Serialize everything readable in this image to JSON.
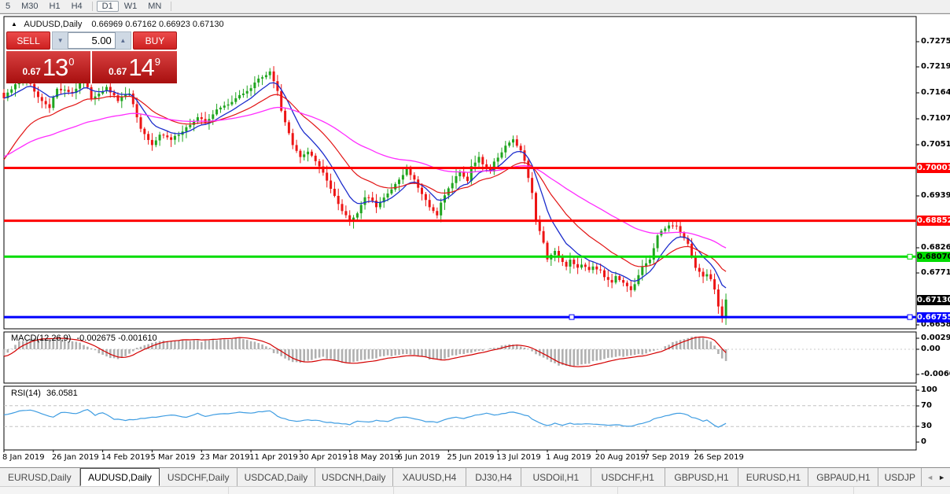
{
  "toolbar": {
    "timeframes": [
      {
        "label": "5",
        "active": false
      },
      {
        "label": "M30",
        "active": false
      },
      {
        "label": "H1",
        "active": false
      },
      {
        "label": "H4",
        "active": false
      },
      {
        "label": "D1",
        "active": true
      },
      {
        "label": "W1",
        "active": false
      },
      {
        "label": "MN",
        "active": false
      }
    ]
  },
  "chart": {
    "symbol_header": "AUDUSD,Daily",
    "ohlc_text": "0.66969 0.67162 0.66923 0.67130"
  },
  "trade_panel": {
    "sell_label": "SELL",
    "buy_label": "BUY",
    "volume": "5.00",
    "sell_price": {
      "small": "0.67",
      "big": "13",
      "sup": "0"
    },
    "buy_price": {
      "small": "0.67",
      "big": "14",
      "sup": "9"
    }
  },
  "price_scale": {
    "ticks": [
      "0.72750",
      "0.72195",
      "0.71640",
      "0.71070",
      "0.70515",
      "0.69390",
      "0.68265",
      "0.67710",
      "0.66585"
    ]
  },
  "indicators": {
    "macd": {
      "label": "MACD(12,26,9)",
      "values": "-0.002675 -0.001610",
      "scale_labels": [
        "0.002968",
        "0.00",
        "-0.006047"
      ]
    },
    "rsi": {
      "label": "RSI(14)",
      "value": "36.0581",
      "scale_labels": [
        "100",
        "70",
        "30",
        "0"
      ],
      "levels": [
        70,
        30
      ]
    }
  },
  "x_axis": {
    "dates": [
      "8 Jan 2019",
      "26 Jan 2019",
      "14 Feb 2019",
      "5 Mar 2019",
      "23 Mar 2019",
      "11 Apr 2019",
      "30 Apr 2019",
      "18 May 2019",
      "6 Jun 2019",
      "25 Jun 2019",
      "13 Jul 2019",
      "1 Aug 2019",
      "20 Aug 2019",
      "7 Sep 2019",
      "26 Sep 2019"
    ]
  },
  "tab_bar": {
    "tabs": [
      "EURUSD,Daily",
      "AUDUSD,Daily",
      "USDCHF,Daily",
      "USDCAD,Daily",
      "USDCNH,Daily",
      "XAUUSD,H4",
      "DJ30,H4",
      "USDOil,H1",
      "USDCHF,H1",
      "GBPUSD,H1",
      "EURUSD,H1",
      "GBPAUD,H1",
      "USDJP"
    ],
    "active_tab": "AUDUSD,Daily",
    "scroll_left": "◄",
    "scroll_right": "►"
  },
  "chart_data": {
    "type": "candlestick",
    "symbol": "AUDUSD",
    "period": "Daily",
    "num_candles": 191,
    "ylim": [
      0.66585,
      0.7275
    ],
    "colors": {
      "up_candle": "#1fa51f",
      "down_candle": "#ed1515",
      "ma_fast_blue": "#1c2ccc",
      "ma_mid_red": "#e21414",
      "ma_slow_magenta": "#ff2cff",
      "macd_hist": "#b0b0b0",
      "macd_signal": "#d40000",
      "rsi_line": "#3f9de2",
      "level_red": "#fe0000",
      "level_green": "#00dc00",
      "level_blue": "#0000fe"
    },
    "close_anchors": [
      [
        0,
        0.7152
      ],
      [
        3,
        0.7181
      ],
      [
        6,
        0.7195
      ],
      [
        9,
        0.7152
      ],
      [
        12,
        0.713
      ],
      [
        14,
        0.7174
      ],
      [
        18,
        0.7164
      ],
      [
        21,
        0.7195
      ],
      [
        23,
        0.7152
      ],
      [
        27,
        0.7174
      ],
      [
        30,
        0.7147
      ],
      [
        33,
        0.7164
      ],
      [
        36,
        0.7083
      ],
      [
        39,
        0.7049
      ],
      [
        41,
        0.7075
      ],
      [
        44,
        0.7061
      ],
      [
        48,
        0.7088
      ],
      [
        51,
        0.7109
      ],
      [
        53,
        0.71
      ],
      [
        56,
        0.7126
      ],
      [
        59,
        0.714
      ],
      [
        62,
        0.7157
      ],
      [
        65,
        0.7174
      ],
      [
        67,
        0.7195
      ],
      [
        70,
        0.7208
      ],
      [
        72,
        0.7169
      ],
      [
        73,
        0.7126
      ],
      [
        76,
        0.7049
      ],
      [
        78,
        0.7023
      ],
      [
        80,
        0.7037
      ],
      [
        82,
        0.7015
      ],
      [
        84,
        0.6989
      ],
      [
        87,
        0.6941
      ],
      [
        89,
        0.6907
      ],
      [
        91,
        0.6886
      ],
      [
        93,
        0.6903
      ],
      [
        95,
        0.6938
      ],
      [
        97,
        0.6929
      ],
      [
        98,
        0.6917
      ],
      [
        100,
        0.6934
      ],
      [
        102,
        0.6955
      ],
      [
        105,
        0.6986
      ],
      [
        106,
        0.6998
      ],
      [
        108,
        0.6973
      ],
      [
        110,
        0.6941
      ],
      [
        112,
        0.6917
      ],
      [
        114,
        0.6895
      ],
      [
        115,
        0.6924
      ],
      [
        117,
        0.6955
      ],
      [
        119,
        0.698
      ],
      [
        120,
        0.6992
      ],
      [
        122,
        0.6973
      ],
      [
        123,
        0.7003
      ],
      [
        125,
        0.7024
      ],
      [
        126,
        0.701
      ],
      [
        128,
        0.6992
      ],
      [
        129,
        0.7015
      ],
      [
        131,
        0.7032
      ],
      [
        132,
        0.7049
      ],
      [
        134,
        0.7061
      ],
      [
        136,
        0.704
      ],
      [
        137,
        0.7015
      ],
      [
        139,
        0.6946
      ],
      [
        140,
        0.6886
      ],
      [
        142,
        0.6835
      ],
      [
        143,
        0.6801
      ],
      [
        145,
        0.6821
      ],
      [
        146,
        0.6804
      ],
      [
        148,
        0.6787
      ],
      [
        149,
        0.6801
      ],
      [
        151,
        0.6784
      ],
      [
        152,
        0.6792
      ],
      [
        154,
        0.678
      ],
      [
        155,
        0.6787
      ],
      [
        157,
        0.6775
      ],
      [
        158,
        0.6763
      ],
      [
        160,
        0.6753
      ],
      [
        161,
        0.6766
      ],
      [
        163,
        0.6749
      ],
      [
        165,
        0.6732
      ],
      [
        166,
        0.6746
      ],
      [
        167,
        0.6766
      ],
      [
        168,
        0.6784
      ],
      [
        170,
        0.6801
      ],
      [
        171,
        0.6826
      ],
      [
        172,
        0.6852
      ],
      [
        174,
        0.6869
      ],
      [
        175,
        0.6877
      ],
      [
        177,
        0.6872
      ],
      [
        178,
        0.686
      ],
      [
        180,
        0.6835
      ],
      [
        181,
        0.6809
      ],
      [
        182,
        0.6784
      ],
      [
        183,
        0.6775
      ],
      [
        184,
        0.6763
      ],
      [
        185,
        0.677
      ],
      [
        186,
        0.6758
      ],
      [
        187,
        0.6735
      ],
      [
        188,
        0.6697
      ],
      [
        189,
        0.6671
      ],
      [
        190,
        0.6713
      ]
    ],
    "hlines": [
      {
        "price": 0.70001,
        "label": "0.70001",
        "color": "#fe0000",
        "label_fg": "#ffffff",
        "handles": []
      },
      {
        "price": 0.68852,
        "label": "0.68852",
        "color": "#fe0000",
        "label_fg": "#ffffff",
        "handles": []
      },
      {
        "price": 0.6807,
        "label": "0.68070",
        "color": "#00dc00",
        "label_fg": "#000000",
        "handles": [
          1157
        ]
      },
      {
        "price": 0.66755,
        "label": "0.66755",
        "color": "#0000fe",
        "label_fg": "#ffffff",
        "handles": [
          727,
          1157
        ]
      }
    ],
    "current_price_label": {
      "price": 0.6713,
      "label": "0.67130",
      "bg": "#000000",
      "fg": "#ffffff"
    },
    "macd_hist_anchors": [
      [
        0,
        -8
      ],
      [
        4,
        10
      ],
      [
        8,
        14
      ],
      [
        13,
        13
      ],
      [
        19,
        10
      ],
      [
        22,
        3
      ],
      [
        24,
        -2
      ],
      [
        27,
        -10
      ],
      [
        30,
        -12
      ],
      [
        33,
        -6
      ],
      [
        35,
        2
      ],
      [
        37,
        6
      ],
      [
        41,
        10
      ],
      [
        47,
        12
      ],
      [
        52,
        10
      ],
      [
        56,
        12
      ],
      [
        61,
        14
      ],
      [
        64,
        12
      ],
      [
        67,
        8
      ],
      [
        70,
        2
      ],
      [
        71,
        -4
      ],
      [
        75,
        -14
      ],
      [
        78,
        -18
      ],
      [
        80,
        -14
      ],
      [
        84,
        -10
      ],
      [
        87,
        -14
      ],
      [
        90,
        -18
      ],
      [
        93,
        -16
      ],
      [
        96,
        -12
      ],
      [
        99,
        -10
      ],
      [
        102,
        -8
      ],
      [
        106,
        -6
      ],
      [
        109,
        -8
      ],
      [
        112,
        -12
      ],
      [
        115,
        -14
      ],
      [
        117,
        -10
      ],
      [
        120,
        -6
      ],
      [
        123,
        -4
      ],
      [
        126,
        -2
      ],
      [
        129,
        2
      ],
      [
        131,
        4
      ],
      [
        134,
        6
      ],
      [
        136,
        4
      ],
      [
        138,
        0
      ],
      [
        140,
        -6
      ],
      [
        143,
        -14
      ],
      [
        146,
        -20
      ],
      [
        149,
        -22
      ],
      [
        152,
        -20
      ],
      [
        155,
        -16
      ],
      [
        158,
        -12
      ],
      [
        161,
        -10
      ],
      [
        165,
        -8
      ],
      [
        168,
        -6
      ],
      [
        170,
        -4
      ],
      [
        173,
        0
      ],
      [
        175,
        6
      ],
      [
        177,
        10
      ],
      [
        180,
        14
      ],
      [
        182,
        16
      ],
      [
        184,
        14
      ],
      [
        186,
        10
      ],
      [
        187,
        4
      ],
      [
        188,
        -6
      ],
      [
        189,
        -12
      ],
      [
        190,
        -14
      ]
    ],
    "rsi_anchors": [
      [
        0,
        52
      ],
      [
        4,
        60
      ],
      [
        7,
        62
      ],
      [
        10,
        55
      ],
      [
        13,
        48
      ],
      [
        15,
        57
      ],
      [
        19,
        55
      ],
      [
        22,
        63
      ],
      [
        24,
        52
      ],
      [
        26,
        57
      ],
      [
        29,
        44
      ],
      [
        32,
        42
      ],
      [
        35,
        44
      ],
      [
        38,
        47
      ],
      [
        41,
        49
      ],
      [
        44,
        52
      ],
      [
        48,
        48
      ],
      [
        51,
        55
      ],
      [
        53,
        50
      ],
      [
        56,
        53
      ],
      [
        59,
        55
      ],
      [
        62,
        57
      ],
      [
        65,
        55
      ],
      [
        67,
        58
      ],
      [
        70,
        60
      ],
      [
        72,
        50
      ],
      [
        75,
        42
      ],
      [
        78,
        40
      ],
      [
        80,
        43
      ],
      [
        83,
        41
      ],
      [
        85,
        38
      ],
      [
        88,
        36
      ],
      [
        91,
        34
      ],
      [
        93,
        40
      ],
      [
        96,
        38
      ],
      [
        98,
        42
      ],
      [
        101,
        40
      ],
      [
        103,
        46
      ],
      [
        106,
        48
      ],
      [
        109,
        44
      ],
      [
        111,
        40
      ],
      [
        114,
        38
      ],
      [
        116,
        44
      ],
      [
        119,
        48
      ],
      [
        121,
        46
      ],
      [
        124,
        52
      ],
      [
        127,
        55
      ],
      [
        129,
        52
      ],
      [
        132,
        56
      ],
      [
        134,
        58
      ],
      [
        136,
        54
      ],
      [
        138,
        50
      ],
      [
        140,
        40
      ],
      [
        143,
        32
      ],
      [
        145,
        36
      ],
      [
        147,
        33
      ],
      [
        149,
        36
      ],
      [
        151,
        34
      ],
      [
        153,
        36
      ],
      [
        155,
        35
      ],
      [
        157,
        33
      ],
      [
        159,
        32
      ],
      [
        161,
        34
      ],
      [
        163,
        31
      ],
      [
        165,
        30
      ],
      [
        167,
        34
      ],
      [
        169,
        38
      ],
      [
        171,
        44
      ],
      [
        174,
        50
      ],
      [
        176,
        54
      ],
      [
        178,
        56
      ],
      [
        180,
        52
      ],
      [
        181,
        48
      ],
      [
        183,
        44
      ],
      [
        184,
        40
      ],
      [
        185,
        42
      ],
      [
        186,
        38
      ],
      [
        187,
        32
      ],
      [
        188,
        28
      ],
      [
        190,
        36
      ]
    ]
  }
}
